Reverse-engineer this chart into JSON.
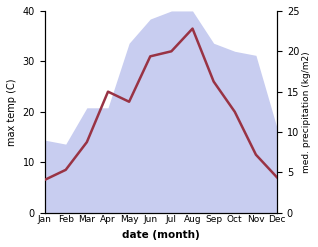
{
  "months": [
    "Jan",
    "Feb",
    "Mar",
    "Apr",
    "May",
    "Jun",
    "Jul",
    "Aug",
    "Sep",
    "Oct",
    "Nov",
    "Dec"
  ],
  "temperature": [
    6.5,
    8.5,
    14.0,
    24.0,
    22.0,
    31.0,
    32.0,
    36.5,
    26.0,
    20.0,
    11.5,
    7.0
  ],
  "precipitation": [
    9.0,
    8.5,
    13.0,
    13.0,
    21.0,
    24.0,
    25.0,
    25.0,
    21.0,
    20.0,
    19.5,
    10.5
  ],
  "temp_color": "#993344",
  "precip_fill_color": "#c8cdf0",
  "temp_ylim": [
    0,
    40
  ],
  "precip_ylim": [
    0,
    25
  ],
  "temp_yticks": [
    0,
    10,
    20,
    30,
    40
  ],
  "precip_yticks": [
    0,
    5,
    10,
    15,
    20,
    25
  ],
  "ylabel_left": "max temp (C)",
  "ylabel_right": "med. precipitation (kg/m2)",
  "xlabel": "date (month)",
  "figsize": [
    3.18,
    2.47
  ],
  "dpi": 100
}
